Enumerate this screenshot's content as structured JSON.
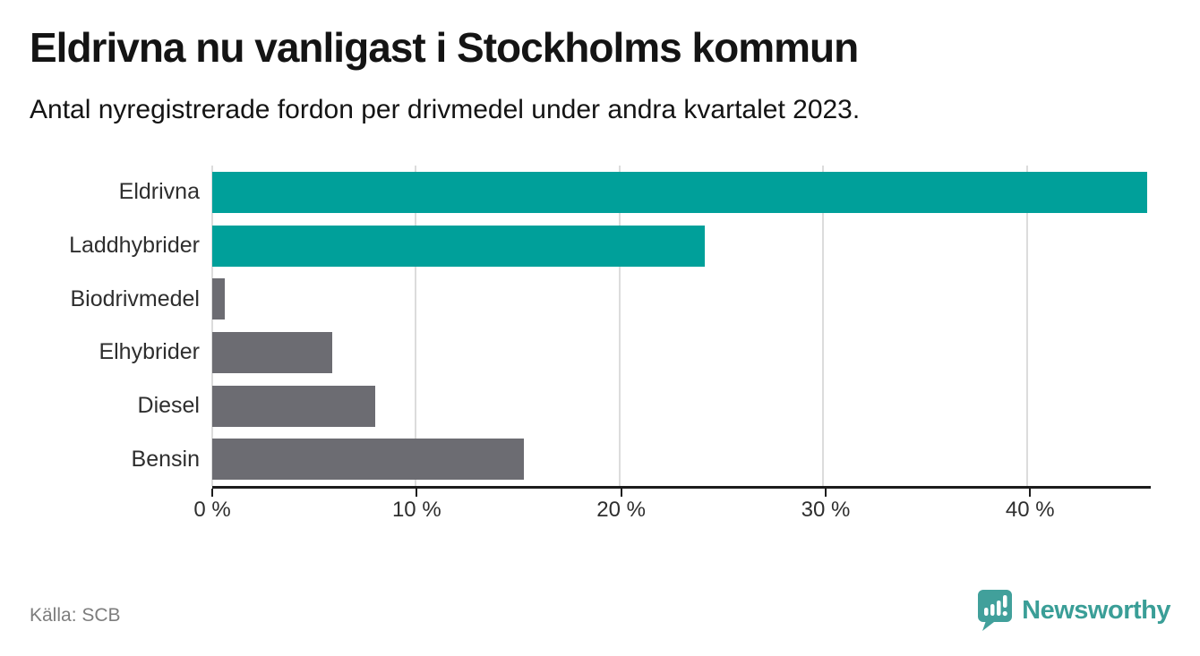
{
  "page": {
    "background": "#ffffff"
  },
  "chart_data": {
    "type": "bar",
    "orientation": "horizontal",
    "title": "Eldrivna nu vanligast i Stockholms kommun",
    "subtitle": "Antal nyregistrerade fordon per drivmedel under andra kvartalet 2023.",
    "categories": [
      "Eldrivna",
      "Laddhybrider",
      "Biodrivmedel",
      "Elhybrider",
      "Diesel",
      "Bensin"
    ],
    "values": [
      45.9,
      24.2,
      0.6,
      5.9,
      8.0,
      15.3
    ],
    "unit": "%",
    "xlim": [
      0,
      45.9
    ],
    "x_tick_values": [
      0,
      10,
      20,
      30,
      40
    ],
    "x_tick_labels": [
      "0 %",
      "10 %",
      "20 %",
      "30 %",
      "40 %"
    ],
    "grid": true,
    "legend": "none",
    "highlighted_categories": [
      "Eldrivna",
      "Laddhybrider"
    ],
    "colors": {
      "highlight": "#00a09a",
      "other": "#6c6c72"
    },
    "bar_colors": [
      "#00a09a",
      "#00a09a",
      "#6c6c72",
      "#6c6c72",
      "#6c6c72",
      "#6c6c72"
    ]
  },
  "footer": {
    "source": "Källa: SCB",
    "brand": "Newsworthy",
    "brand_color": "#3a9e97",
    "brand_icon": "speech-bubble-bar-chart-icon",
    "brand_icon_color": "#41a09b"
  }
}
